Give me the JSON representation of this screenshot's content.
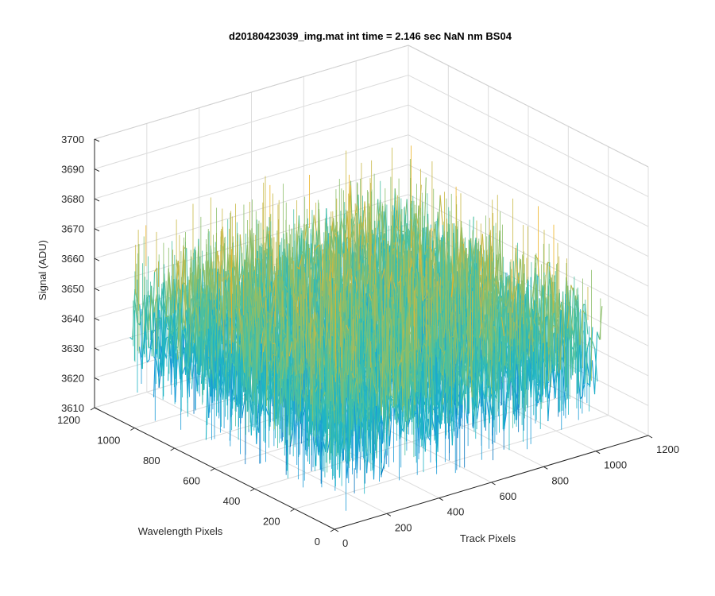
{
  "figure": {
    "title": "d20180423039_img.mat int time = 2.146 sec  NaN nm BS04"
  },
  "chart_data": {
    "type": "surface",
    "title": "d20180423039_img.mat int time = 2.146 sec  NaN nm BS04",
    "xlabel": "Track Pixels",
    "ylabel": "Wavelength Pixels",
    "zlabel": "Signal (ADU)",
    "xlim": [
      0,
      1200
    ],
    "ylim": [
      0,
      1200
    ],
    "zlim": [
      3610,
      3700
    ],
    "x_ticks": [
      0,
      200,
      400,
      600,
      800,
      1000,
      1200
    ],
    "y_ticks": [
      0,
      200,
      400,
      600,
      800,
      1000,
      1200
    ],
    "z_ticks": [
      3610,
      3620,
      3630,
      3640,
      3650,
      3660,
      3670,
      3680,
      3690,
      3700
    ],
    "x_tick_labels": [
      "0",
      "200",
      "400",
      "600",
      "800",
      "1000",
      "1200"
    ],
    "y_tick_labels": [
      "0",
      "200",
      "400",
      "600",
      "800",
      "1000",
      "1200"
    ],
    "z_tick_labels": [
      "3610",
      "3620",
      "3630",
      "3640",
      "3650",
      "3660",
      "3670",
      "3680",
      "3690",
      "3700"
    ],
    "data_extent": {
      "x": [
        1,
        1024
      ],
      "y": [
        1,
        1024
      ]
    },
    "signal_mean": 3645,
    "signal_range": [
      3615,
      3696
    ],
    "colormap": [
      "#0072bd",
      "#1a9bd7",
      "#1fb4c5",
      "#4ac0a0",
      "#8cbe69",
      "#c8b845",
      "#edb120"
    ],
    "grid": true
  }
}
